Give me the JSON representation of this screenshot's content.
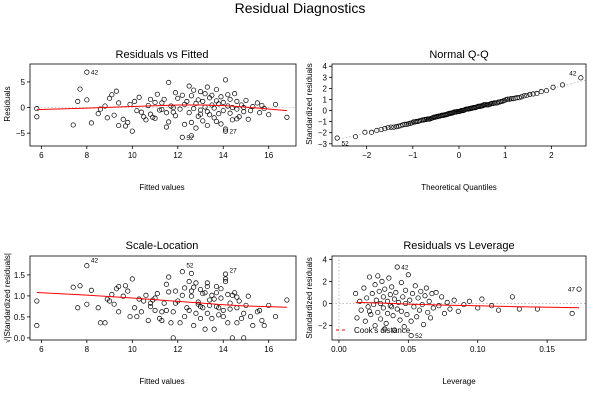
{
  "page": {
    "title": "Residual Diagnostics"
  },
  "chart_data": [
    {
      "type": "scatter",
      "title": "Residuals vs Fitted",
      "xlabel": "Fitted values",
      "ylabel": "Residuals",
      "xlim": [
        5.5,
        17.2
      ],
      "ylim": [
        -7.5,
        8.5
      ],
      "xticks": [
        6,
        8,
        10,
        12,
        14,
        16
      ],
      "yticks": [
        -5,
        0,
        5
      ],
      "ref_line_y": 0,
      "points": [
        [
          5.8,
          -0.2
        ],
        [
          5.8,
          -1.8
        ],
        [
          7.4,
          -3.4
        ],
        [
          7.6,
          1.2
        ],
        [
          7.7,
          3.6
        ],
        [
          8.0,
          1.5
        ],
        [
          8.0,
          6.9
        ],
        [
          8.2,
          -3.0
        ],
        [
          8.5,
          -1.2
        ],
        [
          8.6,
          -0.3
        ],
        [
          8.8,
          0.3
        ],
        [
          9.0,
          1.8
        ],
        [
          9.1,
          2.5
        ],
        [
          9.2,
          -1.5
        ],
        [
          9.3,
          3.2
        ],
        [
          9.4,
          0.9
        ],
        [
          9.6,
          -2.3
        ],
        [
          9.7,
          -3.6
        ],
        [
          9.8,
          -2.9
        ],
        [
          10.0,
          -4.6
        ],
        [
          10.1,
          1.2
        ],
        [
          10.2,
          -0.6
        ],
        [
          10.3,
          2.0
        ],
        [
          10.5,
          -1.8
        ],
        [
          10.6,
          -2.4
        ],
        [
          10.7,
          0.4
        ],
        [
          10.8,
          -1.3
        ],
        [
          10.9,
          -1.9
        ],
        [
          11.0,
          -2.1
        ],
        [
          11.0,
          1.0
        ],
        [
          11.1,
          2.6
        ],
        [
          11.2,
          -0.5
        ],
        [
          11.3,
          0.9
        ],
        [
          11.4,
          1.6
        ],
        [
          11.5,
          -1.0
        ],
        [
          11.6,
          -2.8
        ],
        [
          11.6,
          4.9
        ],
        [
          11.7,
          0.3
        ],
        [
          11.8,
          -0.9
        ],
        [
          11.9,
          -1.6
        ],
        [
          12.0,
          1.8
        ],
        [
          12.1,
          -0.3
        ],
        [
          12.2,
          2.4
        ],
        [
          12.3,
          -3.3
        ],
        [
          12.3,
          0.6
        ],
        [
          12.4,
          1.2
        ],
        [
          12.5,
          -1.0
        ],
        [
          12.6,
          -5.5
        ],
        [
          12.6,
          2.3
        ],
        [
          12.7,
          -0.2
        ],
        [
          12.7,
          3.4
        ],
        [
          12.8,
          0.8
        ],
        [
          12.9,
          -1.7
        ],
        [
          12.9,
          1.5
        ],
        [
          13.0,
          -0.5
        ],
        [
          13.0,
          3.1
        ],
        [
          13.1,
          -2.6
        ],
        [
          13.1,
          1.2
        ],
        [
          13.2,
          0.1
        ],
        [
          13.2,
          2.7
        ],
        [
          13.3,
          -0.8
        ],
        [
          13.3,
          -3.5
        ],
        [
          13.4,
          1.9
        ],
        [
          13.4,
          -1.4
        ],
        [
          13.5,
          0.5
        ],
        [
          13.5,
          2.4
        ],
        [
          13.6,
          -2.0
        ],
        [
          13.6,
          -0.1
        ],
        [
          13.7,
          1.3
        ],
        [
          13.7,
          3.5
        ],
        [
          13.8,
          -1.2
        ],
        [
          13.8,
          0.7
        ],
        [
          13.9,
          2.1
        ],
        [
          13.9,
          -3.2
        ],
        [
          14.0,
          1.0
        ],
        [
          14.0,
          -0.6
        ],
        [
          14.1,
          5.4
        ],
        [
          14.1,
          -4.2
        ],
        [
          14.2,
          0.3
        ],
        [
          14.2,
          2.5
        ],
        [
          14.3,
          -1.1
        ],
        [
          14.3,
          1.6
        ],
        [
          14.4,
          -2.4
        ],
        [
          14.4,
          0.0
        ],
        [
          14.5,
          2.7
        ],
        [
          14.6,
          -0.3
        ],
        [
          14.6,
          1.2
        ],
        [
          14.7,
          -1.8
        ],
        [
          14.8,
          0.5
        ],
        [
          14.9,
          -0.8
        ],
        [
          15.0,
          1.4
        ],
        [
          15.2,
          -0.6
        ],
        [
          15.3,
          0.2
        ],
        [
          15.5,
          0.9
        ],
        [
          15.6,
          -1.0
        ],
        [
          15.7,
          0.4
        ],
        [
          15.8,
          -0.2
        ],
        [
          16.0,
          -1.4
        ],
        [
          16.3,
          0.6
        ],
        [
          16.8,
          -1.9
        ],
        [
          12.2,
          -5.8
        ],
        [
          14.1,
          -4.6
        ],
        [
          11.5,
          -3.8
        ],
        [
          12.6,
          -2.9
        ],
        [
          10.4,
          -0.9
        ],
        [
          9.9,
          0.6
        ],
        [
          11.9,
          2.9
        ],
        [
          13.0,
          -1.3
        ],
        [
          14.6,
          -2.2
        ],
        [
          8.9,
          -2.0
        ],
        [
          12.8,
          -4.0
        ],
        [
          13.7,
          -2.7
        ],
        [
          11.8,
          0.0
        ],
        [
          10.8,
          1.6
        ],
        [
          9.4,
          -3.5
        ],
        [
          15.1,
          -2.3
        ],
        [
          12.5,
          4.2
        ],
        [
          13.3,
          4.0
        ],
        [
          11.3,
          -0.4
        ],
        [
          14.9,
          0.0
        ]
      ],
      "smooth": [
        [
          5.8,
          -0.4
        ],
        [
          8,
          -0.1
        ],
        [
          10,
          0.2
        ],
        [
          12,
          0.5
        ],
        [
          13,
          0.5
        ],
        [
          14,
          0.4
        ],
        [
          15,
          0.1
        ],
        [
          16.8,
          -0.6
        ]
      ],
      "point_labels": [
        {
          "text": "42",
          "x": 8.0,
          "y": 6.9
        },
        {
          "text": "52",
          "x": 12.2,
          "y": -5.8
        },
        {
          "text": "27",
          "x": 14.1,
          "y": -4.6
        }
      ]
    },
    {
      "type": "scatter",
      "title": "Normal Q-Q",
      "xlabel": "Theoretical Quantiles",
      "ylabel": "Standardized residuals",
      "xlim": [
        -2.75,
        2.75
      ],
      "ylim": [
        -3.2,
        4.2
      ],
      "xticks": [
        -2,
        -1,
        0,
        1,
        2
      ],
      "yticks": [
        -3,
        -2,
        -1,
        0,
        1,
        2,
        3,
        4
      ],
      "ref_line_slope": 1.0,
      "ref_line_intercept": 0,
      "n_points": 120,
      "point_labels": [
        {
          "text": "42",
          "x": 2.63,
          "y": 3.4
        },
        {
          "text": "52",
          "x": -2.63,
          "y": -2.95
        }
      ]
    },
    {
      "type": "scatter",
      "title": "Scale-Location",
      "xlabel": "Fitted values",
      "ylabel": "√|Standardized residuals|",
      "xlim": [
        5.5,
        17.2
      ],
      "ylim": [
        -0.05,
        1.95
      ],
      "xticks": [
        6,
        8,
        10,
        12,
        14,
        16
      ],
      "yticks": [
        0.0,
        0.5,
        1.0,
        1.5
      ],
      "yticklabels": [
        "0.0",
        "0.5",
        "1.0",
        "1.5"
      ],
      "smooth": [
        [
          5.8,
          1.08
        ],
        [
          8,
          1.02
        ],
        [
          10,
          0.95
        ],
        [
          12,
          0.87
        ],
        [
          13,
          0.83
        ],
        [
          14,
          0.79
        ],
        [
          15,
          0.76
        ],
        [
          16.8,
          0.73
        ]
      ],
      "point_labels": [
        {
          "text": "42",
          "x": 8.0,
          "y": 1.86
        },
        {
          "text": "52",
          "x": 12.2,
          "y": 1.74
        },
        {
          "text": "27",
          "x": 14.1,
          "y": 1.62
        }
      ]
    },
    {
      "type": "scatter",
      "title": "Residuals vs Leverage",
      "xlabel": "Leverage",
      "ylabel": "Standardized residuals",
      "xlim": [
        -0.005,
        0.178
      ],
      "ylim": [
        -3.3,
        4.3
      ],
      "xticks": [
        0.0,
        0.05,
        0.1,
        0.15
      ],
      "xticklabels": [
        "0.00",
        "0.05",
        "0.10",
        "0.15"
      ],
      "yticks": [
        -2,
        0,
        2,
        4
      ],
      "points": [
        [
          0.012,
          0.9
        ],
        [
          0.013,
          -1.3
        ],
        [
          0.015,
          0.2
        ],
        [
          0.016,
          -0.6
        ],
        [
          0.018,
          1.4
        ],
        [
          0.019,
          -1.6
        ],
        [
          0.02,
          0.5
        ],
        [
          0.021,
          -0.3
        ],
        [
          0.022,
          2.4
        ],
        [
          0.023,
          -1.0
        ],
        [
          0.024,
          0.9
        ],
        [
          0.025,
          -0.1
        ],
        [
          0.026,
          1.7
        ],
        [
          0.026,
          -2.0
        ],
        [
          0.027,
          0.3
        ],
        [
          0.028,
          -0.8
        ],
        [
          0.029,
          1.1
        ],
        [
          0.03,
          0.0
        ],
        [
          0.03,
          -1.4
        ],
        [
          0.031,
          2.0
        ],
        [
          0.032,
          0.6
        ],
        [
          0.032,
          -0.4
        ],
        [
          0.033,
          1.3
        ],
        [
          0.034,
          -1.8
        ],
        [
          0.035,
          0.2
        ],
        [
          0.035,
          -0.9
        ],
        [
          0.036,
          2.3
        ],
        [
          0.037,
          0.8
        ],
        [
          0.037,
          -0.2
        ],
        [
          0.038,
          1.5
        ],
        [
          0.039,
          -1.1
        ],
        [
          0.04,
          0.4
        ],
        [
          0.04,
          -2.4
        ],
        [
          0.041,
          1.0
        ],
        [
          0.042,
          -0.5
        ],
        [
          0.042,
          3.3
        ],
        [
          0.043,
          0.1
        ],
        [
          0.044,
          -1.5
        ],
        [
          0.045,
          1.9
        ],
        [
          0.045,
          -0.7
        ],
        [
          0.046,
          0.6
        ],
        [
          0.047,
          -2.1
        ],
        [
          0.048,
          1.2
        ],
        [
          0.048,
          0.0
        ],
        [
          0.049,
          -1.0
        ],
        [
          0.05,
          2.6
        ],
        [
          0.051,
          0.3
        ],
        [
          0.052,
          -1.6
        ],
        [
          0.052,
          -2.9
        ],
        [
          0.053,
          0.9
        ],
        [
          0.054,
          -0.3
        ],
        [
          0.055,
          1.6
        ],
        [
          0.056,
          -1.2
        ],
        [
          0.057,
          0.5
        ],
        [
          0.058,
          -0.6
        ],
        [
          0.059,
          1.1
        ],
        [
          0.06,
          -0.1
        ],
        [
          0.061,
          -1.9
        ],
        [
          0.062,
          0.7
        ],
        [
          0.063,
          1.4
        ],
        [
          0.064,
          -0.8
        ],
        [
          0.065,
          0.2
        ],
        [
          0.066,
          -1.3
        ],
        [
          0.067,
          0.9
        ],
        [
          0.068,
          -0.4
        ],
        [
          0.07,
          1.0
        ],
        [
          0.072,
          -0.2
        ],
        [
          0.074,
          0.6
        ],
        [
          0.076,
          -0.9
        ],
        [
          0.078,
          0.1
        ],
        [
          0.08,
          -0.5
        ],
        [
          0.083,
          0.3
        ],
        [
          0.086,
          -0.7
        ],
        [
          0.09,
          -0.1
        ],
        [
          0.094,
          0.2
        ],
        [
          0.1,
          -0.4
        ],
        [
          0.103,
          0.4
        ],
        [
          0.11,
          -0.2
        ],
        [
          0.115,
          -0.6
        ],
        [
          0.125,
          0.6
        ],
        [
          0.13,
          -0.5
        ],
        [
          0.143,
          -0.5
        ],
        [
          0.168,
          -0.9
        ],
        [
          0.173,
          1.3
        ],
        [
          0.022,
          -0.7
        ],
        [
          0.028,
          2.5
        ],
        [
          0.033,
          -2.3
        ],
        [
          0.038,
          -0.3
        ]
      ],
      "smooth": [
        [
          0.012,
          0.1
        ],
        [
          0.03,
          0.05
        ],
        [
          0.05,
          -0.05
        ],
        [
          0.08,
          -0.15
        ],
        [
          0.1,
          -0.2
        ],
        [
          0.13,
          -0.3
        ],
        [
          0.173,
          -0.38
        ]
      ],
      "point_labels": [
        {
          "text": "42",
          "x": 0.042,
          "y": 3.3
        },
        {
          "text": "47",
          "x": 0.173,
          "y": 1.3
        },
        {
          "text": "52",
          "x": 0.052,
          "y": -2.9
        }
      ],
      "legend": {
        "text": "Cook's distance",
        "position": "bottom-left"
      }
    }
  ]
}
